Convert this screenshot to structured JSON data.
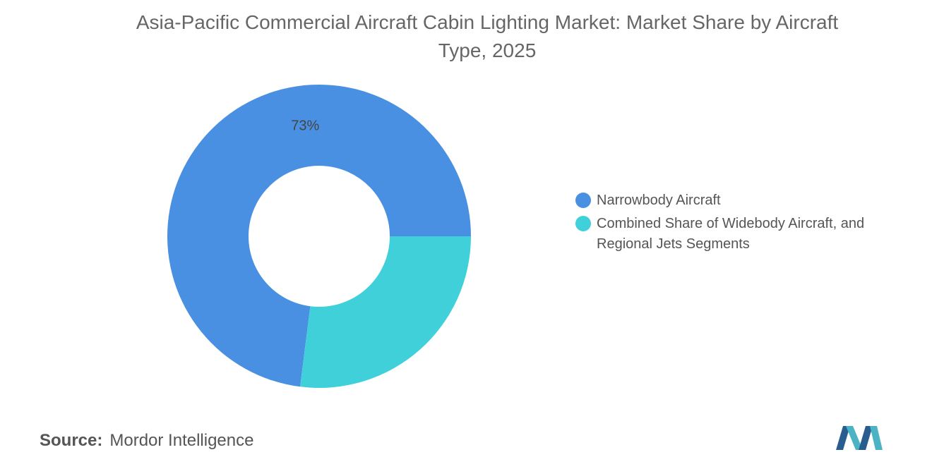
{
  "chart_data": {
    "type": "donut",
    "title": "Asia-Pacific Commercial Aircraft Cabin Lighting Market: Market Share by Aircraft Type, 2025",
    "categories": [
      "Narrowbody Aircraft",
      "Combined Share of Widebody Aircraft, and Regional Jets Segments"
    ],
    "values": [
      73,
      27
    ],
    "value_labels": [
      "73%",
      null
    ],
    "colors": [
      "#4a90e2",
      "#3fd0d9"
    ],
    "legend": "right"
  },
  "source": {
    "label": "Source:",
    "text": "Mordor Intelligence"
  }
}
